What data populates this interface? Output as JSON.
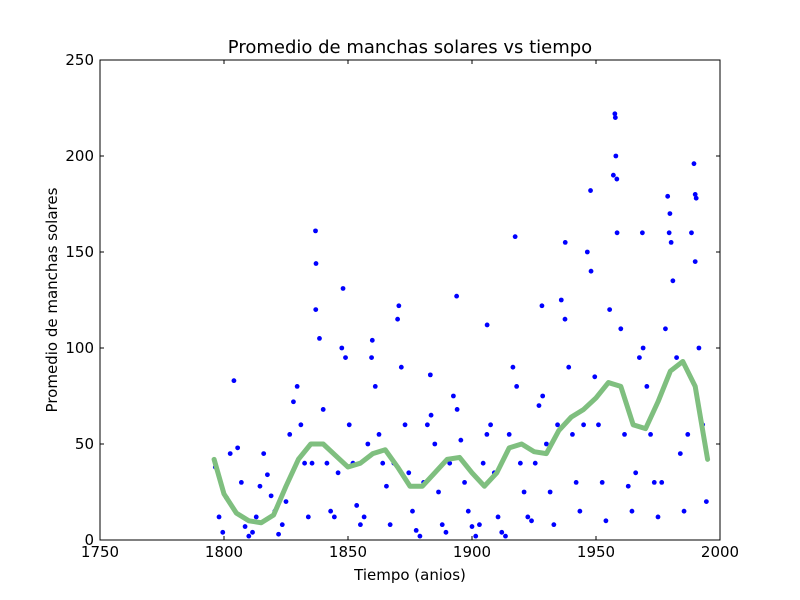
{
  "chart_data": {
    "type": "scatter",
    "title": "Promedio de manchas solares vs tiempo",
    "xlabel": "Tiempo (anios)",
    "ylabel": "Promedio de manchas solares",
    "xlim": [
      1750,
      2000
    ],
    "ylim": [
      0,
      250
    ],
    "xticks": [
      1750,
      1800,
      1850,
      1900,
      1950,
      2000
    ],
    "yticks": [
      0,
      50,
      100,
      150,
      200,
      250
    ],
    "grid": false,
    "legend": "none",
    "colors": {
      "points": "#0000ff",
      "trend": "#7fbf7f",
      "axes": "#000000"
    },
    "series": [
      {
        "kind": "scatter",
        "x": [
          1796.5,
          1798.0,
          1799.5,
          1801.0,
          1802.5,
          1804.0,
          1805.5,
          1807.0,
          1808.5,
          1810.0,
          1811.5,
          1813.0,
          1814.5,
          1816.0,
          1817.5,
          1819.0,
          1820.5,
          1822.0,
          1823.5,
          1825.0,
          1826.5,
          1828.0,
          1829.5,
          1831.0,
          1832.5,
          1834.0,
          1835.5,
          1837.0,
          1838.5,
          1840.0,
          1841.5,
          1843.0,
          1844.5,
          1846.0,
          1847.5,
          1849.0,
          1850.5,
          1852.0,
          1853.5,
          1855.0,
          1856.5,
          1858.0,
          1859.5,
          1861.0,
          1862.5,
          1864.0,
          1865.5,
          1867.0,
          1868.5,
          1870.0,
          1871.5,
          1873.0,
          1874.5,
          1876.0,
          1877.5,
          1879.0,
          1880.5,
          1882.0,
          1883.5,
          1885.0,
          1886.5,
          1888.0,
          1889.5,
          1891.0,
          1892.5,
          1894.0,
          1895.5,
          1897.0,
          1898.5,
          1900.0,
          1901.5,
          1903.0,
          1904.5,
          1906.0,
          1907.5,
          1909.0,
          1910.5,
          1912.0,
          1913.5,
          1915.0,
          1916.5,
          1918.0,
          1919.5,
          1921.0,
          1922.5,
          1924.0,
          1925.5,
          1927.0,
          1928.5,
          1930.0,
          1931.5,
          1933.0,
          1934.5,
          1936.0,
          1937.5,
          1939.0,
          1940.5,
          1942.0,
          1943.5,
          1945.0,
          1946.5,
          1948.0,
          1949.5,
          1951.0,
          1952.5,
          1954.0,
          1955.5,
          1957.0,
          1958.5,
          1960.0,
          1961.5,
          1963.0,
          1964.5,
          1966.0,
          1967.5,
          1969.0,
          1970.5,
          1972.0,
          1973.5,
          1975.0,
          1976.5,
          1978.0,
          1979.5,
          1981.0,
          1982.5,
          1984.0,
          1985.5,
          1987.0,
          1988.5,
          1990.0,
          1991.5,
          1993.0,
          1994.5,
          1836.9,
          1837.1,
          1848.0,
          1859.8,
          1870.5,
          1883.2,
          1893.8,
          1906.1,
          1917.4,
          1928.2,
          1937.6,
          1947.8,
          1957.6,
          1957.8,
          1958.0,
          1958.4,
          1968.7,
          1978.9,
          1979.8,
          1980.3,
          1989.5,
          1990.0,
          1990.4
        ],
        "y": [
          38,
          12,
          4,
          22,
          45,
          83,
          48,
          30,
          7,
          2,
          4,
          12,
          28,
          45,
          34,
          23,
          15,
          3,
          8,
          20,
          55,
          72,
          80,
          60,
          40,
          12,
          40,
          120,
          105,
          68,
          40,
          15,
          12,
          35,
          100,
          95,
          60,
          40,
          18,
          8,
          12,
          50,
          95,
          80,
          55,
          40,
          28,
          8,
          40,
          115,
          90,
          60,
          35,
          15,
          5,
          2,
          30,
          60,
          65,
          50,
          25,
          8,
          4,
          40,
          75,
          68,
          52,
          30,
          15,
          7,
          2,
          8,
          40,
          55,
          60,
          35,
          12,
          4,
          2,
          55,
          90,
          80,
          40,
          25,
          12,
          10,
          40,
          70,
          75,
          50,
          25,
          8,
          60,
          125,
          115,
          90,
          55,
          30,
          15,
          60,
          150,
          140,
          85,
          60,
          30,
          10,
          120,
          190,
          160,
          110,
          55,
          28,
          15,
          35,
          95,
          100,
          80,
          55,
          30,
          12,
          30,
          110,
          160,
          135,
          95,
          45,
          15,
          55,
          160,
          145,
          100,
          60,
          20,
          161,
          144,
          131,
          104,
          122,
          86,
          127,
          112,
          158,
          122,
          155,
          182,
          222,
          220,
          200,
          188,
          160,
          179,
          170,
          155,
          196,
          180,
          178
        ]
      },
      {
        "kind": "trend",
        "x": [
          1796,
          1800,
          1805,
          1810,
          1815,
          1820,
          1825,
          1830,
          1835,
          1840,
          1845,
          1850,
          1855,
          1860,
          1865,
          1870,
          1875,
          1880,
          1885,
          1890,
          1895,
          1900,
          1905,
          1910,
          1915,
          1920,
          1925,
          1930,
          1935,
          1940,
          1945,
          1950,
          1955,
          1960,
          1965,
          1970,
          1975,
          1980,
          1985,
          1990,
          1995
        ],
        "y": [
          42,
          24,
          14,
          10,
          9,
          13,
          28,
          42,
          50,
          50,
          44,
          38,
          40,
          45,
          47,
          38,
          28,
          28,
          35,
          42,
          43,
          35,
          28,
          35,
          48,
          50,
          46,
          45,
          57,
          64,
          68,
          74,
          82,
          80,
          60,
          58,
          72,
          88,
          93,
          80,
          42
        ]
      }
    ]
  }
}
